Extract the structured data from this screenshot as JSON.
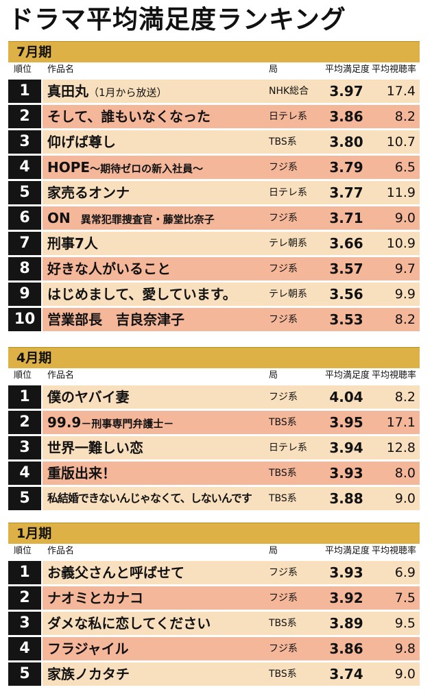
{
  "title": "ドラマ平均満足度ランキング",
  "columns": {
    "rank": "順位",
    "work": "作品名",
    "station": "局",
    "satisfaction": "平均満足度",
    "rating": "平均視聴率"
  },
  "sections": [
    {
      "label": "7月期",
      "rows": [
        {
          "rank": "1",
          "title": "真田丸",
          "subtitle": "（1月から放送）",
          "station": "NHK総合",
          "score": "3.97",
          "rating": "17.4"
        },
        {
          "rank": "2",
          "title": "そして、誰もいなくなった",
          "subtitle": "",
          "station": "日テレ系",
          "score": "3.86",
          "rating": "8.2"
        },
        {
          "rank": "3",
          "title": "仰げば尊し",
          "subtitle": "",
          "station": "TBS系",
          "score": "3.80",
          "rating": "10.7"
        },
        {
          "rank": "4",
          "title": "HOPE",
          "subtitle": "～期待ゼロの新入社員～",
          "station": "フジ系",
          "score": "3.79",
          "rating": "6.5"
        },
        {
          "rank": "5",
          "title": "家売るオンナ",
          "subtitle": "",
          "station": "日テレ系",
          "score": "3.77",
          "rating": "11.9"
        },
        {
          "rank": "6",
          "title": "ON",
          "subtitle": "　異常犯罪捜査官・藤堂比奈子",
          "station": "フジ系",
          "score": "3.71",
          "rating": "9.0"
        },
        {
          "rank": "7",
          "title": "刑事7人",
          "subtitle": "",
          "station": "テレ朝系",
          "score": "3.66",
          "rating": "10.9"
        },
        {
          "rank": "8",
          "title": "好きな人がいること",
          "subtitle": "",
          "station": "フジ系",
          "score": "3.57",
          "rating": "9.7"
        },
        {
          "rank": "9",
          "title": "はじめまして、愛しています。",
          "subtitle": "",
          "station": "テレ朝系",
          "score": "3.56",
          "rating": "9.9"
        },
        {
          "rank": "10",
          "title": "営業部長　吉良奈津子",
          "subtitle": "",
          "station": "フジ系",
          "score": "3.53",
          "rating": "8.2"
        }
      ]
    },
    {
      "label": "4月期",
      "rows": [
        {
          "rank": "1",
          "title": "僕のヤバイ妻",
          "subtitle": "",
          "station": "フジ系",
          "score": "4.04",
          "rating": "8.2"
        },
        {
          "rank": "2",
          "title": "99.9",
          "subtitle": "－刑事専門弁護士－",
          "station": "TBS系",
          "score": "3.95",
          "rating": "17.1"
        },
        {
          "rank": "3",
          "title": "世界一難しい恋",
          "subtitle": "",
          "station": "日テレ系",
          "score": "3.94",
          "rating": "12.8"
        },
        {
          "rank": "4",
          "title": "重版出来！",
          "subtitle": "",
          "station": "TBS系",
          "score": "3.93",
          "rating": "8.0"
        },
        {
          "rank": "5",
          "title": "私結婚できないんじゃなくて、しないんです",
          "subtitle": "",
          "station": "TBS系",
          "score": "3.88",
          "rating": "9.0"
        }
      ]
    },
    {
      "label": "1月期",
      "rows": [
        {
          "rank": "1",
          "title": "お義父さんと呼ばせて",
          "subtitle": "",
          "station": "フジ系",
          "score": "3.93",
          "rating": "6.9"
        },
        {
          "rank": "2",
          "title": "ナオミとカナコ",
          "subtitle": "",
          "station": "フジ系",
          "score": "3.92",
          "rating": "7.5"
        },
        {
          "rank": "3",
          "title": "ダメな私に恋してください",
          "subtitle": "",
          "station": "TBS系",
          "score": "3.89",
          "rating": "9.5"
        },
        {
          "rank": "4",
          "title": "フラジャイル",
          "subtitle": "",
          "station": "フジ系",
          "score": "3.86",
          "rating": "9.8"
        },
        {
          "rank": "5",
          "title": "家族ノカタチ",
          "subtitle": "",
          "station": "TBS系",
          "score": "3.74",
          "rating": "9.0"
        }
      ]
    }
  ]
}
